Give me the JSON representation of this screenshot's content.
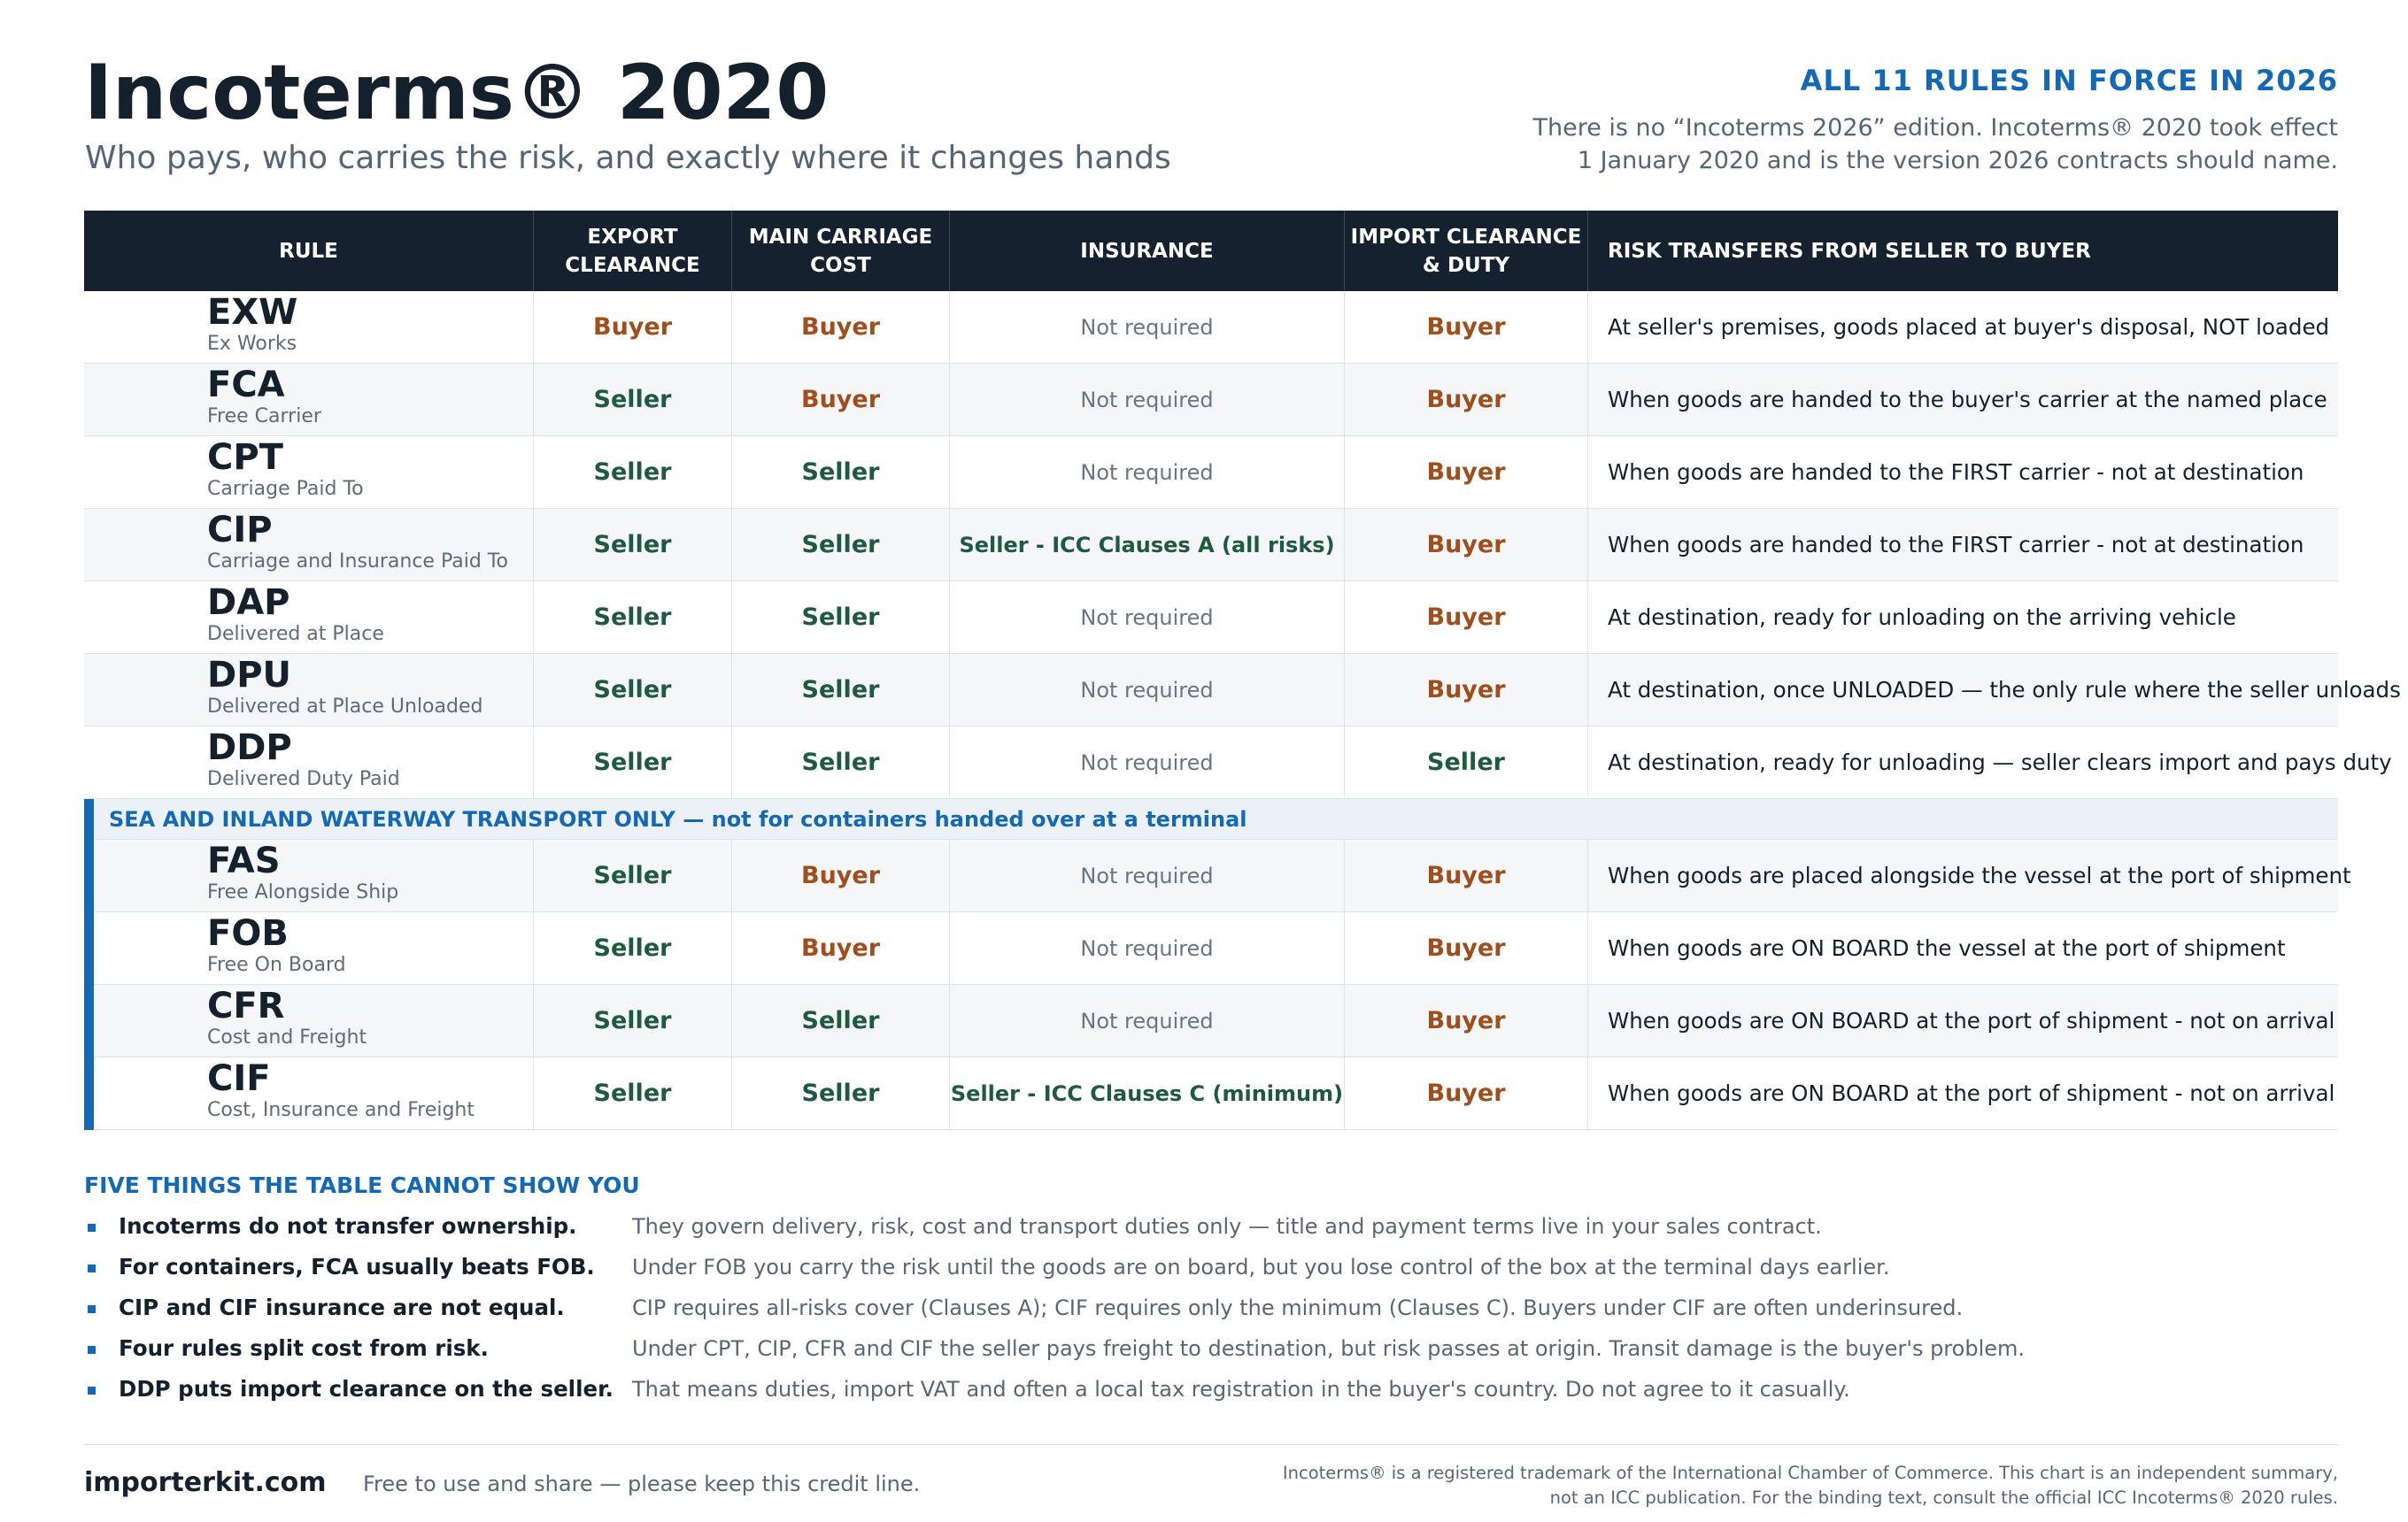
{
  "header": {
    "title": "Incoterms® 2020",
    "subtitle": "Who pays, who carries the risk, and exactly where it changes hands",
    "tag": "ALL 11 RULES IN FORCE IN 2026",
    "note_line1": "There is no “Incoterms 2026” edition. Incoterms® 2020 took effect",
    "note_line2": "1 January 2020 and is the version 2026 contracts should name."
  },
  "columns": {
    "rule": "RULE",
    "export_l1": "EXPORT",
    "export_l2": "CLEARANCE",
    "main_l1": "MAIN CARRIAGE",
    "main_l2": "COST",
    "insurance": "INSURANCE",
    "import_l1": "IMPORT CLEARANCE",
    "import_l2": "& DUTY",
    "risk": "RISK TRANSFERS FROM SELLER TO BUYER"
  },
  "any_mode_rows": [
    {
      "code": "EXW",
      "name": "Ex Works",
      "export": "Buyer",
      "main": "Buyer",
      "insurance": "Not required",
      "import": "Buyer",
      "risk": "At seller's premises, goods placed at buyer's disposal, NOT loaded"
    },
    {
      "code": "FCA",
      "name": "Free Carrier",
      "export": "Seller",
      "main": "Buyer",
      "insurance": "Not required",
      "import": "Buyer",
      "risk": "When goods are handed to the buyer's carrier at the named place"
    },
    {
      "code": "CPT",
      "name": "Carriage Paid To",
      "export": "Seller",
      "main": "Seller",
      "insurance": "Not required",
      "import": "Buyer",
      "risk": "When goods are handed to the FIRST carrier - not at destination"
    },
    {
      "code": "CIP",
      "name": "Carriage and Insurance Paid To",
      "export": "Seller",
      "main": "Seller",
      "insurance": "Seller - ICC Clauses A (all risks)",
      "import": "Buyer",
      "risk": "When goods are handed to the FIRST carrier - not at destination"
    },
    {
      "code": "DAP",
      "name": "Delivered at Place",
      "export": "Seller",
      "main": "Seller",
      "insurance": "Not required",
      "import": "Buyer",
      "risk": "At destination, ready for unloading on the arriving vehicle"
    },
    {
      "code": "DPU",
      "name": "Delivered at Place Unloaded",
      "export": "Seller",
      "main": "Seller",
      "insurance": "Not required",
      "import": "Buyer",
      "risk": "At destination, once UNLOADED — the only rule where the seller unloads"
    },
    {
      "code": "DDP",
      "name": "Delivered Duty Paid",
      "export": "Seller",
      "main": "Seller",
      "insurance": "Not required",
      "import": "Seller",
      "risk": "At destination, ready for unloading — seller clears import and pays duty"
    }
  ],
  "sea_band": "SEA AND INLAND WATERWAY TRANSPORT ONLY  —  not for containers handed over at a terminal",
  "sea_rows": [
    {
      "code": "FAS",
      "name": "Free Alongside Ship",
      "export": "Seller",
      "main": "Buyer",
      "insurance": "Not required",
      "import": "Buyer",
      "risk": "When goods are placed alongside the vessel at the port of shipment"
    },
    {
      "code": "FOB",
      "name": "Free On Board",
      "export": "Seller",
      "main": "Buyer",
      "insurance": "Not required",
      "import": "Buyer",
      "risk": "When goods are ON BOARD the vessel at the port of shipment"
    },
    {
      "code": "CFR",
      "name": "Cost and Freight",
      "export": "Seller",
      "main": "Seller",
      "insurance": "Not required",
      "import": "Buyer",
      "risk": "When goods are ON BOARD at the port of shipment - not on arrival"
    },
    {
      "code": "CIF",
      "name": "Cost, Insurance and Freight",
      "export": "Seller",
      "main": "Seller",
      "insurance": "Seller - ICC Clauses C (minimum)",
      "import": "Buyer",
      "risk": "When goods are ON BOARD at the port of shipment - not on arrival"
    }
  ],
  "notes": {
    "title": "FIVE THINGS THE TABLE CANNOT SHOW YOU",
    "items": [
      {
        "bold": "Incoterms do not transfer ownership.",
        "text": "They govern delivery, risk, cost and transport duties only — title and payment terms live in your sales contract."
      },
      {
        "bold": "For containers, FCA usually beats FOB.",
        "text": "Under FOB you carry the risk until the goods are on board, but you lose control of the box at the terminal days earlier."
      },
      {
        "bold": "CIP and CIF insurance are not equal.",
        "text": "CIP requires all-risks cover (Clauses A); CIF requires only the minimum (Clauses C). Buyers under CIF are often underinsured."
      },
      {
        "bold": "Four rules split cost from risk.",
        "text": "Under CPT, CIP, CFR and CIF the seller pays freight to destination, but risk passes at origin. Transit damage is the buyer's problem."
      },
      {
        "bold": "DDP puts import clearance on the seller.",
        "text": "That means duties, import VAT and often a local tax registration in the buyer's country. Do not agree to it casually."
      }
    ]
  },
  "footer": {
    "site": "importerkit.com",
    "credit": "Free to use and share — please keep this credit line.",
    "legal_l1": "Incoterms® is a registered trademark of the International Chamber of Commerce. This chart is an independent summary,",
    "legal_l2": "not an ICC publication. For the binding text, consult the official ICC Incoterms® 2020 rules."
  },
  "colors": {
    "accent": "#1469b6",
    "buyer": "#a14e1d",
    "seller": "#1e5a3f",
    "header_bg": "#15212e"
  }
}
